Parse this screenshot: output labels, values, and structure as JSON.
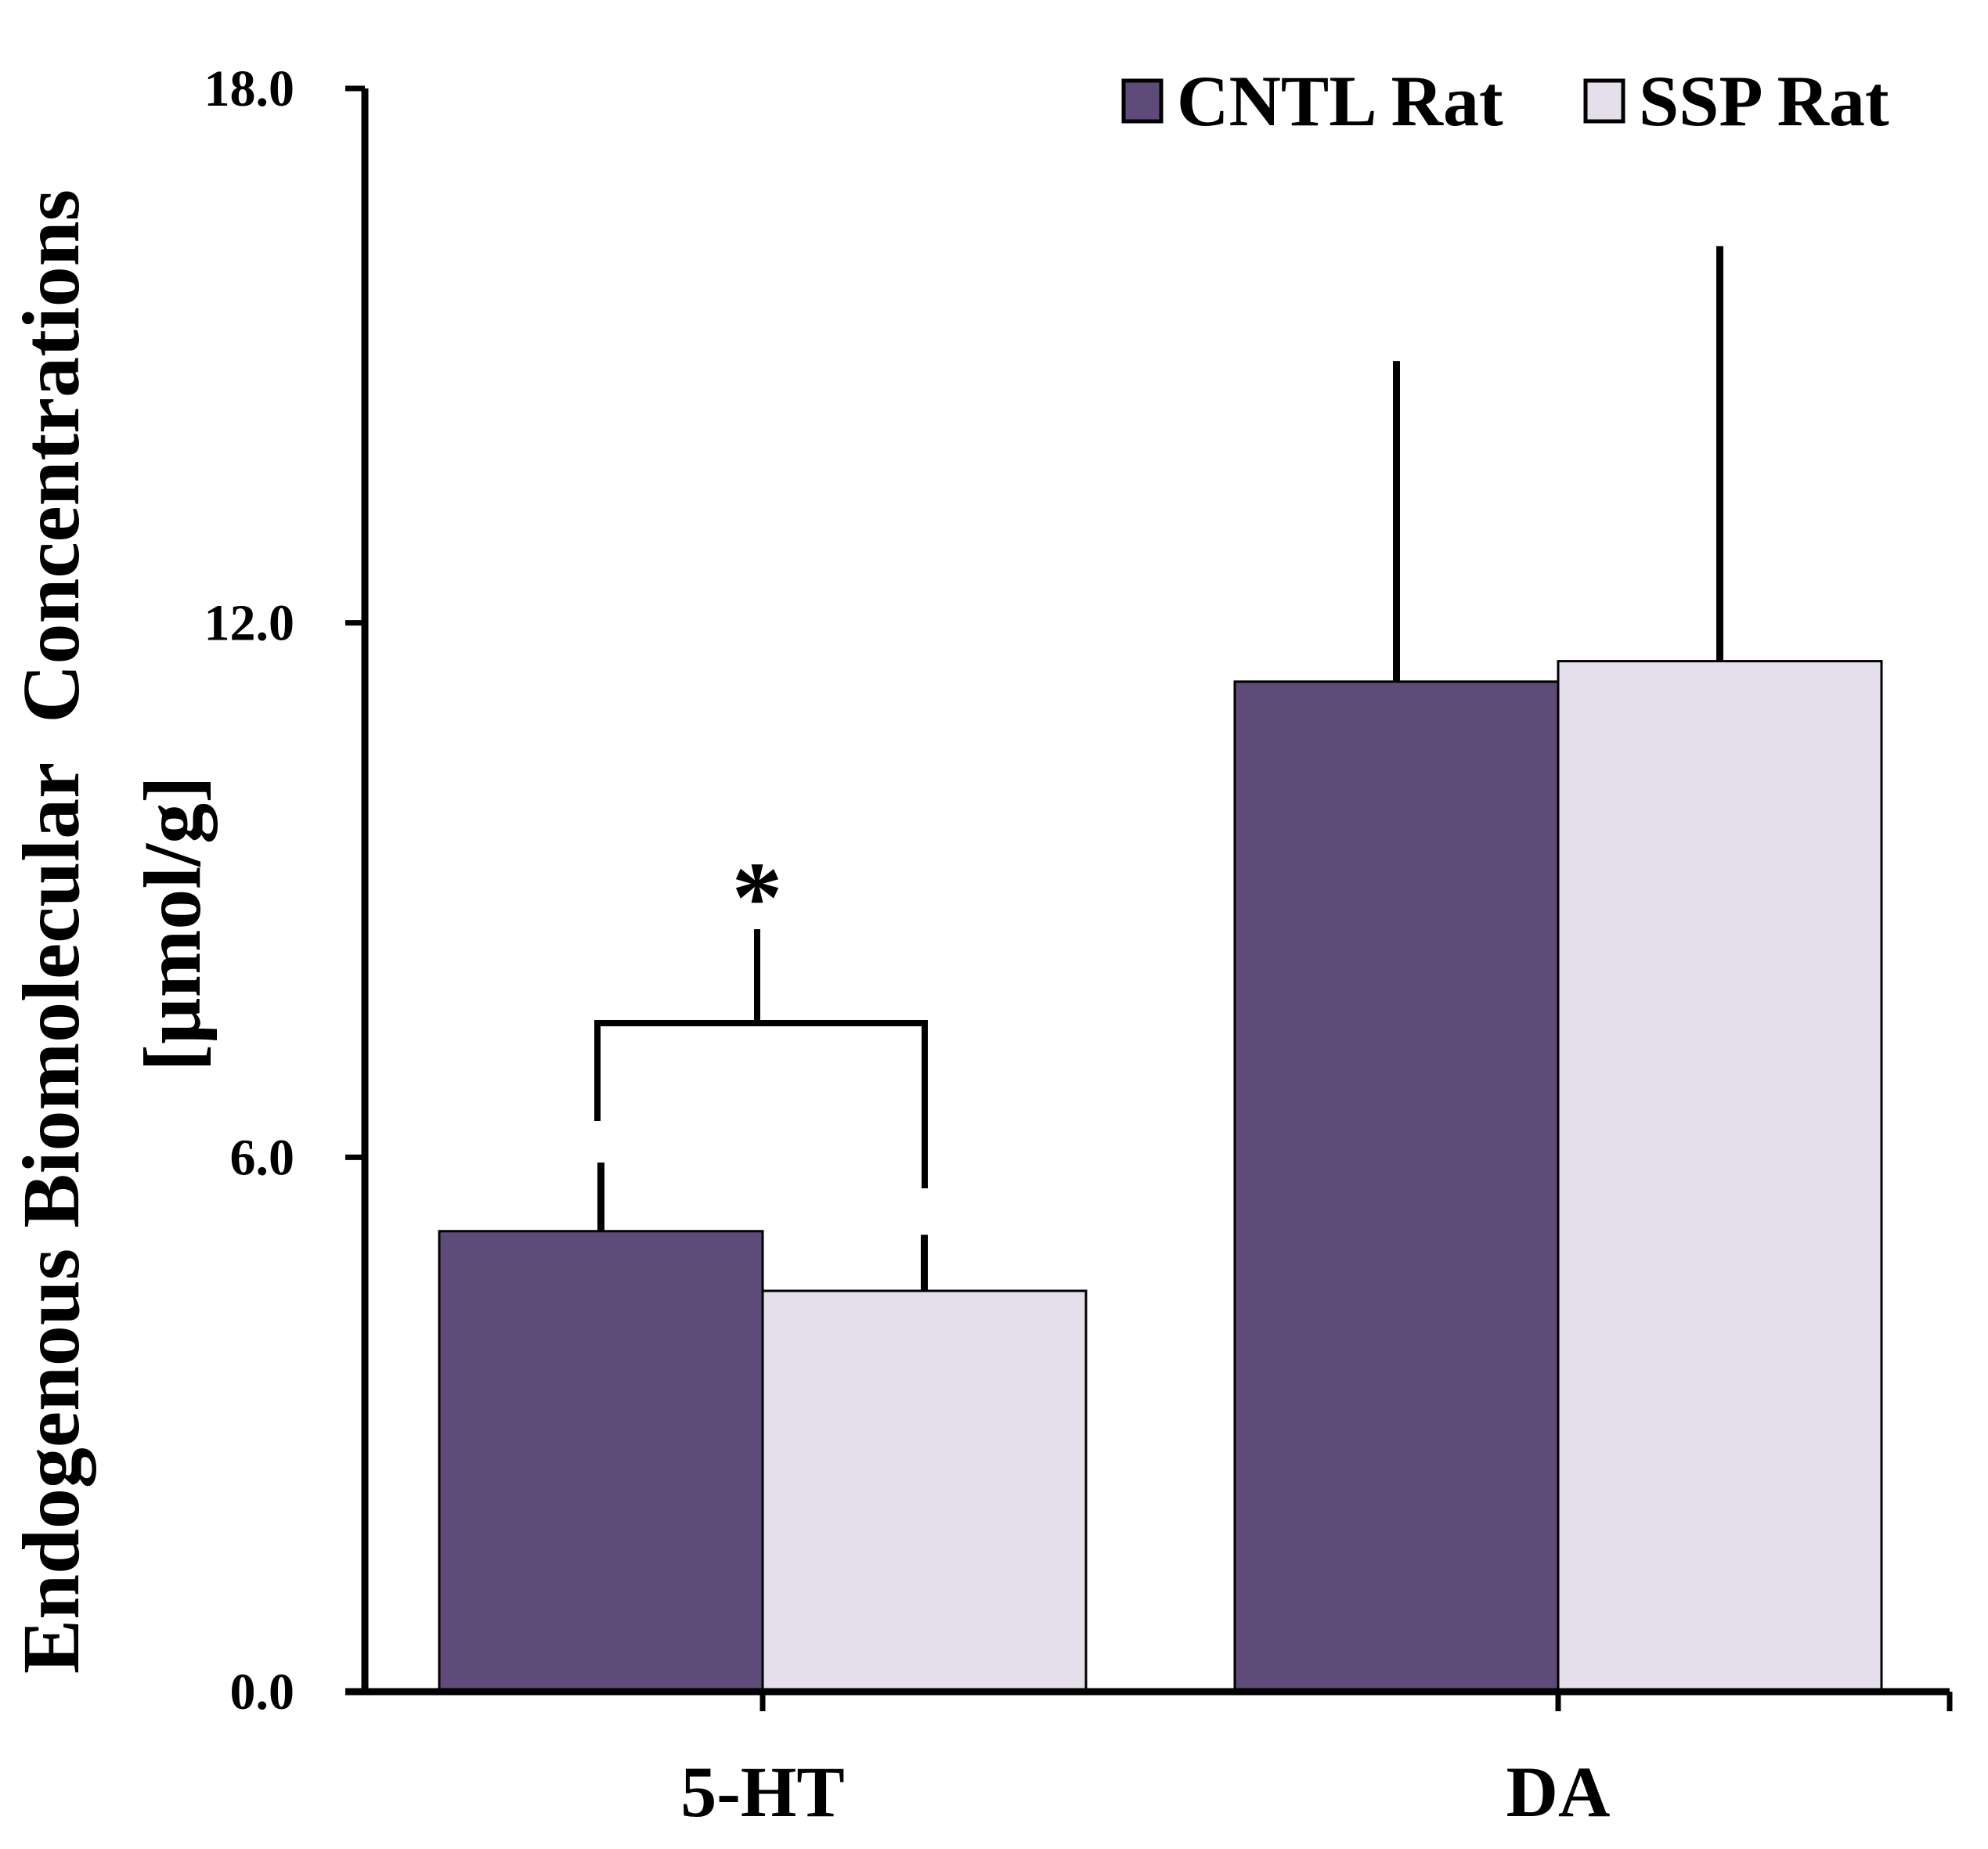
{
  "chart_data": {
    "type": "bar",
    "title": "",
    "xlabel": "",
    "ylabel": "Endogenous Biomolecular  Concentrations",
    "ylabel_unit": "[µmol/g]",
    "categories": [
      "5-HT",
      "DA"
    ],
    "ylim": [
      0,
      18
    ],
    "yticks": [
      "0.0",
      "6.0",
      "12.0",
      "18.0"
    ],
    "ytick_values": [
      0,
      6,
      12,
      18
    ],
    "grid": false,
    "legend_position": "top-right",
    "series": [
      {
        "name": "CNTL Rat",
        "color": "#5f4b7a",
        "values": [
          5.17,
          11.34
        ],
        "errors": [
          0.77,
          3.6
        ]
      },
      {
        "name": "SSP Rat",
        "color": "#e4dfeb",
        "values": [
          4.5,
          11.57
        ],
        "errors": [
          0.63,
          4.66
        ]
      }
    ],
    "annotations": [
      {
        "text": "*",
        "category": "5-HT",
        "type": "significance-bracket"
      }
    ]
  }
}
